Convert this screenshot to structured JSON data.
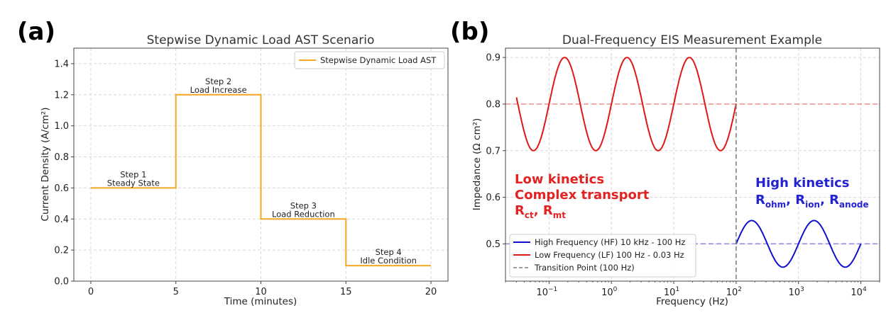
{
  "panels": {
    "a_letter": "(a)",
    "b_letter": "(b)"
  },
  "chart_data": [
    {
      "type": "line",
      "title": "Stepwise Dynamic Load AST Scenario",
      "xlabel": "Time (minutes)",
      "ylabel": "Current Density (A/cm²)",
      "xlim": [
        -1,
        21
      ],
      "ylim": [
        0.0,
        1.5
      ],
      "xticks": [
        0,
        5,
        10,
        15,
        20
      ],
      "xtick_labels": [
        "0",
        "5",
        "10",
        "15",
        "20"
      ],
      "yticks": [
        0.0,
        0.2,
        0.4,
        0.6,
        0.8,
        1.0,
        1.2,
        1.4
      ],
      "ytick_labels": [
        "0.0",
        "0.2",
        "0.4",
        "0.6",
        "0.8",
        "1.0",
        "1.2",
        "1.4"
      ],
      "grid": true,
      "legend_position": "top-right",
      "series": [
        {
          "name": "Stepwise Dynamic Load AST",
          "color": "#f5a623",
          "x": [
            0,
            5,
            5,
            10,
            10,
            15,
            15,
            20
          ],
          "y": [
            0.6,
            0.6,
            1.2,
            1.2,
            0.4,
            0.4,
            0.1,
            0.1
          ]
        }
      ],
      "annotations": [
        {
          "x": 2.5,
          "y": 0.6,
          "lines": [
            "Step 1",
            "Steady State"
          ]
        },
        {
          "x": 7.5,
          "y": 1.2,
          "lines": [
            "Step 2",
            "Load Increase"
          ]
        },
        {
          "x": 12.5,
          "y": 0.4,
          "lines": [
            "Step 3",
            "Load Reduction"
          ]
        },
        {
          "x": 17.5,
          "y": 0.1,
          "lines": [
            "Step 4",
            "Idle Condition"
          ]
        }
      ]
    },
    {
      "type": "line",
      "title": "Dual-Frequency EIS Measurement Example",
      "xlabel": "Frequency (Hz)",
      "ylabel": "Impedance (Ω cm²)",
      "xscale": "log",
      "xlim": [
        0.02,
        20000
      ],
      "ylim": [
        0.42,
        0.92
      ],
      "xticks": [
        0.1,
        1,
        10,
        100,
        1000,
        10000
      ],
      "xtick_labels": [
        [
          "10",
          "−1"
        ],
        [
          "10",
          "0"
        ],
        [
          "10",
          "1"
        ],
        [
          "10",
          "2"
        ],
        [
          "10",
          "3"
        ],
        [
          "10",
          "4"
        ]
      ],
      "yticks": [
        0.5,
        0.6,
        0.7,
        0.8,
        0.9
      ],
      "ytick_labels": [
        "0.5",
        "0.6",
        "0.7",
        "0.8",
        "0.9"
      ],
      "grid": true,
      "legend_position": "lower-left",
      "series": [
        {
          "name": "High Frequency (HF) 10 kHz - 100 Hz",
          "color": "#1010d0",
          "x_range": [
            100,
            10000
          ],
          "formula": "0.5 + 0.05*sin(2*pi*log10(f/100))"
        },
        {
          "name": "Low Frequency (LF) 100 Hz - 0.03 Hz",
          "color": "#e01818",
          "x_range": [
            0.03,
            100
          ],
          "formula": "0.8 + 0.1*sin(2*pi*log10(f/100))"
        },
        {
          "name": "Transition Point (100 Hz)",
          "color": "#808080",
          "vline_x": 100
        }
      ],
      "reference_lines": [
        {
          "y": 0.8,
          "color": "#f08080"
        },
        {
          "y": 0.5,
          "color": "#8080e0"
        }
      ],
      "annotations": {
        "low": {
          "line1": "Low kinetics",
          "line2": "Complex transport",
          "r1": "R",
          "r1_sub": "ct",
          "sep": ", ",
          "r2": "R",
          "r2_sub": "mt"
        },
        "high": {
          "line1": "High kinetics",
          "r1": "R",
          "r1_sub": "ohm",
          "r2": "R",
          "r2_sub": "ion",
          "r3": "R",
          "r3_sub": "anode",
          "sep": ", "
        }
      }
    }
  ]
}
